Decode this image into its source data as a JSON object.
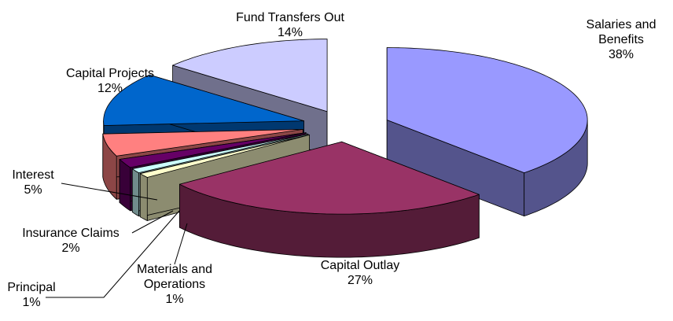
{
  "chart_data": {
    "type": "pie3d",
    "categories": [
      "Salaries and Benefits",
      "Capital Outlay",
      "Materials and Operations",
      "Principal",
      "Insurance Claims",
      "Interest",
      "Capital Projects",
      "Fund Transfers Out"
    ],
    "values": [
      38,
      27,
      1,
      1,
      2,
      5,
      12,
      14
    ],
    "value_labels": [
      "38%",
      "27%",
      "1%",
      "1%",
      "2%",
      "5%",
      "12%",
      "14%"
    ],
    "colors": [
      "#9999ff",
      "#993366",
      "#ffffcc",
      "#ccffff",
      "#660066",
      "#ff8080",
      "#0066cc",
      "#ccccff"
    ]
  }
}
